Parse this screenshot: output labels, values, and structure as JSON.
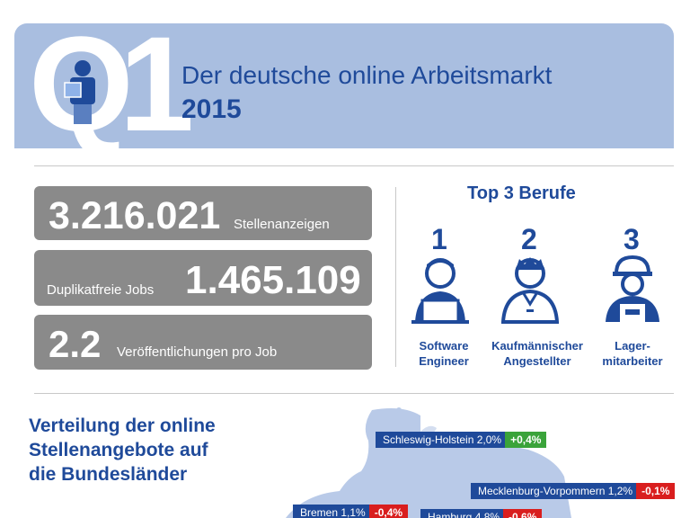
{
  "header": {
    "quarter": "Q1",
    "title": "Der deutsche online Arbeitsmarkt",
    "year": "2015"
  },
  "stats": {
    "ads_value": "3.216.021",
    "ads_label": "Stellenanzeigen",
    "jobs_label": "Duplikatfreie Jobs",
    "jobs_value": "1.465.109",
    "pub_value": "2.2",
    "pub_label": "Veröffentlichungen pro Job"
  },
  "top3": {
    "title": "Top 3 Berufe",
    "items": [
      {
        "rank": "1",
        "label_1": "Software",
        "label_2": "Engineer",
        "icon": "engineer-icon"
      },
      {
        "rank": "2",
        "label_1": "Kaufmännischer",
        "label_2": "Angestellter",
        "icon": "clerk-icon"
      },
      {
        "rank": "3",
        "label_1": "Lager-",
        "label_2": "mitarbeiter",
        "icon": "warehouse-worker-icon"
      }
    ]
  },
  "distribution": {
    "title_1": "Verteilung der online",
    "title_2": "Stellenangebote auf",
    "title_3": "die Bundesländer",
    "states": [
      {
        "name": "Schleswig-Holstein 2,0%",
        "delta": "+0,4%",
        "trend": "up"
      },
      {
        "name": "Mecklenburg-Vorpommern 1,2%",
        "delta": "-0,1%",
        "trend": "down"
      },
      {
        "name": "Bremen 1,1%",
        "delta": "-0,4%",
        "trend": "down"
      },
      {
        "name": "Hamburg 4,8%",
        "delta": "-0,6%",
        "trend": "down"
      }
    ]
  },
  "colors": {
    "brand_blue": "#1f4a9a",
    "header_bg": "#a9bee0",
    "stat_bg": "#8a8a8a",
    "positive": "#3aa33a",
    "negative": "#d91e1e"
  }
}
